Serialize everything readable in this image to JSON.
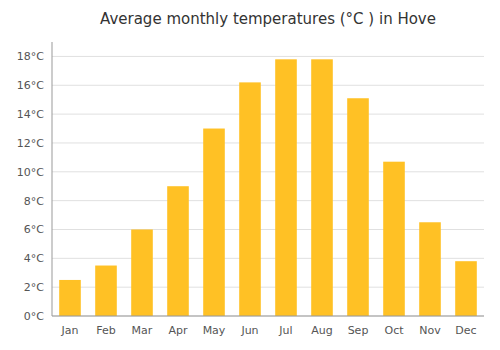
{
  "chart_data": {
    "type": "bar",
    "title": "Average monthly temperatures (°C ) in Hove",
    "categories": [
      "Jan",
      "Feb",
      "Mar",
      "Apr",
      "May",
      "Jun",
      "Jul",
      "Aug",
      "Sep",
      "Oct",
      "Nov",
      "Dec"
    ],
    "values": [
      2.5,
      3.5,
      6.0,
      9.0,
      13.0,
      16.2,
      17.8,
      17.8,
      15.1,
      10.7,
      6.5,
      3.8
    ],
    "color": "#FFC125",
    "ylim": [
      0,
      19
    ],
    "yticks": [
      {
        "value": 0,
        "label": "0°C"
      },
      {
        "value": 2,
        "label": "2°C"
      },
      {
        "value": 4,
        "label": "4°C"
      },
      {
        "value": 6,
        "label": "6°C"
      },
      {
        "value": 8,
        "label": "8°C"
      },
      {
        "value": 10,
        "label": "10°C"
      },
      {
        "value": 12,
        "label": "12°C"
      },
      {
        "value": 14,
        "label": "14°C"
      },
      {
        "value": 16,
        "label": "16°C"
      },
      {
        "value": 18,
        "label": "18°C"
      }
    ],
    "grid": true
  }
}
